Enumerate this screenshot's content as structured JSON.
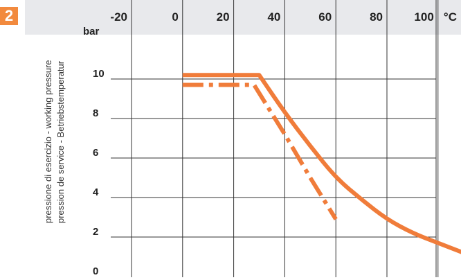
{
  "figure_number": "2",
  "chart_data": {
    "type": "line",
    "x_unit": "°C",
    "y_unit": "bar",
    "ylabel_lines": [
      "pressione di esercizio - working pressure",
      "pression de service - Betriebstemperatur"
    ],
    "x_ticks": [
      -20,
      0,
      20,
      40,
      60,
      80,
      100
    ],
    "y_ticks": [
      0,
      2,
      4,
      6,
      8,
      10
    ],
    "xlim": [
      -20,
      110
    ],
    "ylim": [
      0,
      12
    ],
    "grid": true,
    "series": [
      {
        "style": "solid",
        "color": "#f07c3a",
        "x": [
          0,
          30,
          40,
          50,
          60,
          70,
          80,
          90,
          100,
          110
        ],
        "y": [
          10.2,
          10.2,
          8.3,
          6.6,
          5.0,
          3.9,
          2.9,
          2.2,
          1.7,
          1.2
        ]
      },
      {
        "style": "dash-dot",
        "color": "#f07c3a",
        "x": [
          0,
          28,
          40,
          50,
          60
        ],
        "y": [
          9.7,
          9.7,
          7.2,
          5.0,
          2.9
        ]
      }
    ]
  }
}
